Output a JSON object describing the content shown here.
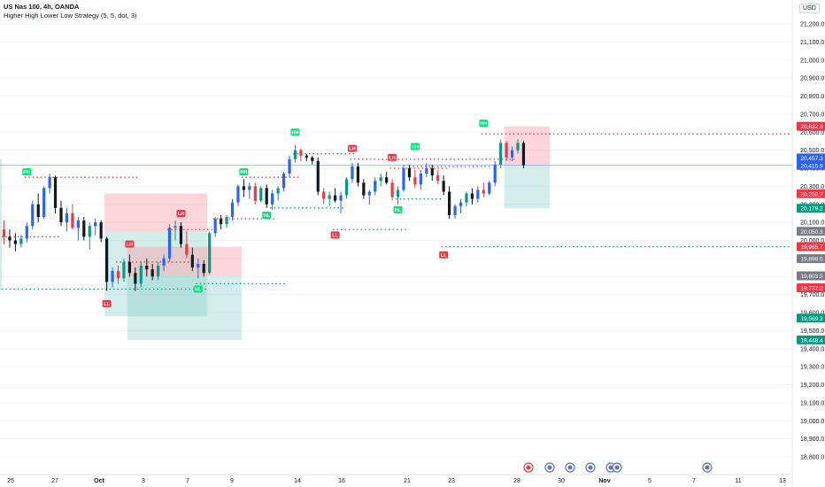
{
  "header": {
    "symbol": "US Nas 100, 4h, OANDA",
    "indicator": "Higher High Lower Low Strategy (5, 5, dot, 3)"
  },
  "currency_label": "USD",
  "colors": {
    "up": "#089981",
    "down": "#f23645",
    "candle_blue": "#2962ff",
    "hh_label": "#00e676",
    "lh_label": "#f23645",
    "sl_zone": "#f7a1aa",
    "tp_zone": "#80cbc4",
    "price_line": "#2962ff"
  },
  "chart_data": {
    "type": "candlestick",
    "title": "US Nas 100, 4h, OANDA",
    "ylim": [
      18700,
      21250
    ],
    "y_ticks": [
      21200,
      21100,
      21000,
      20900,
      20800,
      20700,
      20600,
      20500,
      20400,
      20300,
      20200,
      20100,
      20000,
      19900,
      19800,
      19700,
      19600,
      19500,
      19400,
      19300,
      19200,
      19100,
      19000,
      18900,
      18800
    ],
    "y_tick_labels": [
      "21,200.0",
      "21,100.0",
      "21,000.0",
      "20,900.0",
      "20,800.0",
      "20,700.0",
      "20,600.0",
      "20,500.0",
      "20,400.0",
      "20,300.0",
      "20,200.0",
      "20,100.0",
      "20,000.0",
      "19,900.0",
      "19,800.0",
      "19,700.0",
      "19,600.0",
      "19,500.0",
      "19,400.0",
      "19,300.0",
      "19,200.0",
      "19,100.0",
      "19,000.0",
      "18,900.0",
      "18,800.0"
    ],
    "x_ticks": [
      "25",
      "27",
      "Oct",
      "3",
      "7",
      "9",
      "14",
      "16",
      "21",
      "23",
      "28",
      "30",
      "Nov",
      "5",
      "7",
      "11",
      "13"
    ],
    "price_tags": [
      {
        "value": "20,632.3",
        "color": "#f23645"
      },
      {
        "value": "20,457.3",
        "color": "#2962ff"
      },
      {
        "value": "20,416.7",
        "color": "#2962ff"
      },
      {
        "value": "20,415.9",
        "color": "#2962ff"
      },
      {
        "value": "20,258.7",
        "color": "#f23645"
      },
      {
        "value": "20,178.2",
        "color": "#089981"
      },
      {
        "value": "20,050.3",
        "color": "#787b86"
      },
      {
        "value": "19,965.7",
        "color": "#f23645"
      },
      {
        "value": "19,898.5",
        "color": "#787b86"
      },
      {
        "value": "19,803.5",
        "color": "#787b86"
      },
      {
        "value": "19,737.2",
        "color": "#f23645"
      },
      {
        "value": "19,569.3",
        "color": "#089981"
      },
      {
        "value": "19,448.4",
        "color": "#089981"
      }
    ],
    "candles": [
      [
        20060,
        20110,
        19980,
        20020
      ],
      [
        20020,
        20060,
        19960,
        20000
      ],
      [
        20000,
        20040,
        19940,
        19980
      ],
      [
        19980,
        20030,
        19960,
        20010
      ],
      [
        20010,
        20100,
        19990,
        20080
      ],
      [
        20080,
        20220,
        20060,
        20200
      ],
      [
        20200,
        20260,
        20100,
        20130
      ],
      [
        20130,
        20300,
        20120,
        20290
      ],
      [
        20290,
        20370,
        20260,
        20350
      ],
      [
        20350,
        20360,
        20150,
        20180
      ],
      [
        20180,
        20220,
        20080,
        20100
      ],
      [
        20100,
        20180,
        20050,
        20150
      ],
      [
        20150,
        20200,
        20060,
        20070
      ],
      [
        20070,
        20130,
        20000,
        20110
      ],
      [
        20110,
        20130,
        20000,
        20020
      ],
      [
        20020,
        20100,
        19950,
        20080
      ],
      [
        20080,
        20120,
        20030,
        20100
      ],
      [
        20100,
        20110,
        19990,
        20010
      ],
      [
        20010,
        20020,
        19720,
        19770
      ],
      [
        19770,
        19850,
        19740,
        19830
      ],
      [
        19830,
        19860,
        19760,
        19790
      ],
      [
        19790,
        19900,
        19770,
        19880
      ],
      [
        19880,
        19920,
        19800,
        19820
      ],
      [
        19820,
        19850,
        19720,
        19760
      ],
      [
        19760,
        19880,
        19740,
        19860
      ],
      [
        19860,
        19900,
        19800,
        19840
      ],
      [
        19840,
        19870,
        19780,
        19800
      ],
      [
        19800,
        19880,
        19780,
        19860
      ],
      [
        19860,
        19920,
        19830,
        19900
      ],
      [
        19900,
        20090,
        19880,
        20070
      ],
      [
        20070,
        20110,
        20000,
        20080
      ],
      [
        20080,
        20100,
        19960,
        19980
      ],
      [
        19980,
        20050,
        19900,
        19920
      ],
      [
        19920,
        19960,
        19830,
        19850
      ],
      [
        19850,
        19900,
        19790,
        19870
      ],
      [
        19870,
        19890,
        19800,
        19820
      ],
      [
        19820,
        20050,
        19810,
        20040
      ],
      [
        20040,
        20130,
        20020,
        20120
      ],
      [
        20120,
        20140,
        20060,
        20090
      ],
      [
        20090,
        20140,
        20070,
        20130
      ],
      [
        20130,
        20230,
        20110,
        20210
      ],
      [
        20210,
        20310,
        20190,
        20300
      ],
      [
        20300,
        20340,
        20240,
        20280
      ],
      [
        20280,
        20320,
        20230,
        20300
      ],
      [
        20300,
        20320,
        20200,
        20220
      ],
      [
        20220,
        20300,
        20210,
        20290
      ],
      [
        20290,
        20310,
        20180,
        20200
      ],
      [
        20200,
        20280,
        20170,
        20260
      ],
      [
        20260,
        20300,
        20220,
        20290
      ],
      [
        20290,
        20380,
        20270,
        20370
      ],
      [
        20370,
        20470,
        20350,
        20450
      ],
      [
        20450,
        20530,
        20430,
        20500
      ],
      [
        20500,
        20510,
        20440,
        20470
      ],
      [
        20470,
        20480,
        20440,
        20460
      ],
      [
        20460,
        20470,
        20420,
        20440
      ],
      [
        20440,
        20460,
        20250,
        20270
      ],
      [
        20270,
        20290,
        20200,
        20230
      ],
      [
        20230,
        20270,
        20190,
        20250
      ],
      [
        20250,
        20290,
        20210,
        20220
      ],
      [
        20220,
        20270,
        20150,
        20250
      ],
      [
        20250,
        20350,
        20230,
        20340
      ],
      [
        20340,
        20430,
        20320,
        20410
      ],
      [
        20410,
        20430,
        20300,
        20320
      ],
      [
        20320,
        20340,
        20230,
        20250
      ],
      [
        20250,
        20280,
        20200,
        20270
      ],
      [
        20270,
        20350,
        20250,
        20330
      ],
      [
        20330,
        20370,
        20300,
        20350
      ],
      [
        20350,
        20380,
        20310,
        20320
      ],
      [
        20320,
        20340,
        20220,
        20240
      ],
      [
        20240,
        20300,
        20200,
        20280
      ],
      [
        20280,
        20420,
        20270,
        20400
      ],
      [
        20400,
        20420,
        20330,
        20350
      ],
      [
        20350,
        20390,
        20290,
        20310
      ],
      [
        20310,
        20390,
        20280,
        20370
      ],
      [
        20370,
        20430,
        20350,
        20400
      ],
      [
        20400,
        20420,
        20330,
        20360
      ],
      [
        20360,
        20390,
        20310,
        20330
      ],
      [
        20330,
        20360,
        20250,
        20270
      ],
      [
        20270,
        20300,
        20120,
        20140
      ],
      [
        20140,
        20200,
        20120,
        20190
      ],
      [
        20190,
        20230,
        20150,
        20210
      ],
      [
        20210,
        20270,
        20190,
        20260
      ],
      [
        20260,
        20290,
        20200,
        20230
      ],
      [
        20230,
        20300,
        20210,
        20280
      ],
      [
        20280,
        20320,
        20240,
        20260
      ],
      [
        20260,
        20330,
        20250,
        20320
      ],
      [
        20320,
        20440,
        20300,
        20420
      ],
      [
        20420,
        20560,
        20400,
        20540
      ],
      [
        20540,
        20550,
        20440,
        20460
      ],
      [
        20460,
        20520,
        20440,
        20500
      ],
      [
        20500,
        20560,
        20480,
        20540
      ],
      [
        20540,
        20550,
        20400,
        20417
      ]
    ],
    "labels": [
      {
        "text": "HH",
        "i": 4,
        "v": 20380,
        "kind": "hh"
      },
      {
        "text": "LL",
        "i": 18,
        "v": 19650,
        "kind": "lh"
      },
      {
        "text": "LH",
        "i": 22,
        "v": 19980,
        "kind": "lh"
      },
      {
        "text": "LH",
        "i": 31,
        "v": 20150,
        "kind": "lh"
      },
      {
        "text": "HL",
        "i": 34,
        "v": 19730,
        "kind": "hh"
      },
      {
        "text": "HH",
        "i": 42,
        "v": 20380,
        "kind": "hh"
      },
      {
        "text": "HL",
        "i": 46,
        "v": 20140,
        "kind": "hh"
      },
      {
        "text": "HH",
        "i": 51,
        "v": 20600,
        "kind": "hh"
      },
      {
        "text": "LL",
        "i": 58,
        "v": 20030,
        "kind": "lh"
      },
      {
        "text": "LH",
        "i": 61,
        "v": 20510,
        "kind": "lh"
      },
      {
        "text": "LH",
        "i": 68,
        "v": 20460,
        "kind": "lh"
      },
      {
        "text": "HL",
        "i": 69,
        "v": 20170,
        "kind": "hh"
      },
      {
        "text": "HH",
        "i": 72,
        "v": 20520,
        "kind": "hh"
      },
      {
        "text": "LL",
        "i": 77,
        "v": 19920,
        "kind": "lh"
      },
      {
        "text": "HH",
        "i": 84,
        "v": 20650,
        "kind": "hh"
      }
    ],
    "levels": [
      {
        "v": 20350,
        "i0": 4,
        "i1": 24,
        "color": "#f23645"
      },
      {
        "v": 20020,
        "i0": 0,
        "i1": 10,
        "color": "#f23645"
      },
      {
        "v": 19730,
        "i0": 0,
        "i1": 36,
        "color": "#089981"
      },
      {
        "v": 20060,
        "i0": 29,
        "i1": 37,
        "color": "#f23645"
      },
      {
        "v": 19880,
        "i0": 20,
        "i1": 33,
        "color": "#f23645"
      },
      {
        "v": 19760,
        "i0": 34,
        "i1": 50,
        "color": "#089981"
      },
      {
        "v": 20350,
        "i0": 42,
        "i1": 52,
        "color": "#f23645"
      },
      {
        "v": 20120,
        "i0": 37,
        "i1": 48,
        "color": "#f23645"
      },
      {
        "v": 20180,
        "i0": 47,
        "i1": 60,
        "color": "#089981"
      },
      {
        "v": 20480,
        "i0": 51,
        "i1": 62,
        "color": "#f23645"
      },
      {
        "v": 20450,
        "i0": 61,
        "i1": 90,
        "color": "#f23645"
      },
      {
        "v": 20060,
        "i0": 58,
        "i1": 71,
        "color": "#089981"
      },
      {
        "v": 20400,
        "i0": 68,
        "i1": 78,
        "color": "#f23645"
      },
      {
        "v": 20230,
        "i0": 69,
        "i1": 77,
        "color": "#089981"
      },
      {
        "v": 20410,
        "i0": 72,
        "i1": 86,
        "color": "#f23645"
      },
      {
        "v": 19965,
        "i0": 77,
        "i1": 140,
        "color": "#089981"
      },
      {
        "v": 20590,
        "i0": 84,
        "i1": 140,
        "color": "#f23645"
      }
    ],
    "zones": [
      {
        "i0": 18,
        "i1": 36,
        "v0": 20050,
        "v1": 20260,
        "kind": "sl"
      },
      {
        "i0": 18,
        "i1": 36,
        "v0": 19580,
        "v1": 20050,
        "kind": "tp"
      },
      {
        "i0": 22,
        "i1": 42,
        "v0": 19803,
        "v1": 19965,
        "kind": "sl"
      },
      {
        "i0": 22,
        "i1": 42,
        "v0": 19448,
        "v1": 19803,
        "kind": "tp"
      },
      {
        "i0": 88,
        "i1": 96,
        "v0": 20417,
        "v1": 20632,
        "kind": "sl"
      },
      {
        "i0": 88,
        "i1": 96,
        "v0": 20178,
        "v1": 20417,
        "kind": "tp"
      },
      {
        "i0": -2,
        "i1": 0,
        "v0": 19730,
        "v1": 20450,
        "kind": "tp"
      }
    ]
  }
}
